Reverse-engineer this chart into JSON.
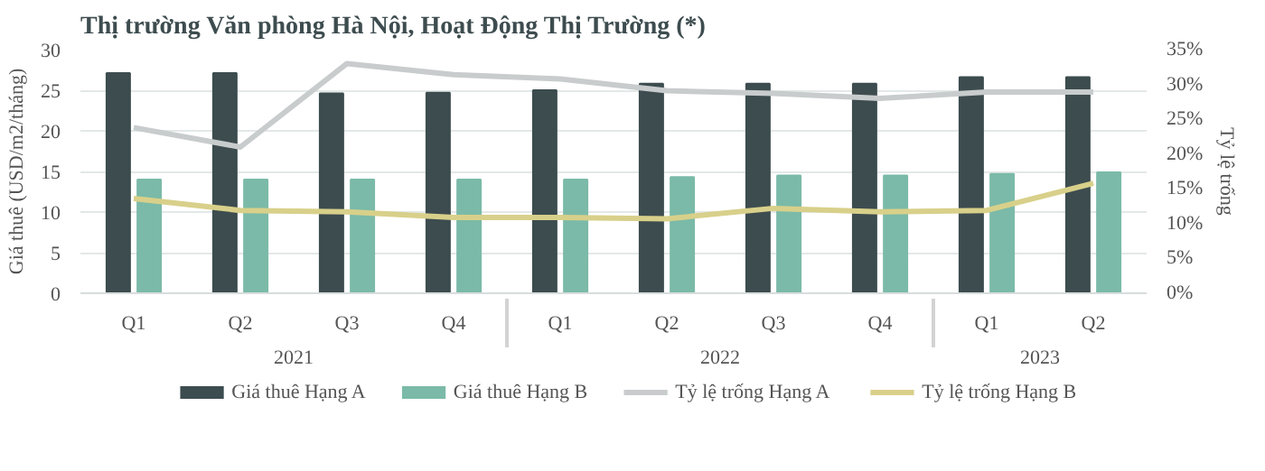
{
  "chart_data": {
    "type": "bar",
    "title": "Thị trường Văn phòng Hà Nội, Hoạt Động Thị Trường (*)",
    "ylabel": "Giá thuê (USD/m2/tháng)",
    "y2label": "Tỷ lệ trống",
    "categories": [
      "Q1",
      "Q2",
      "Q3",
      "Q4",
      "Q1",
      "Q2",
      "Q3",
      "Q4",
      "Q1",
      "Q2"
    ],
    "annotations": [
      "2021",
      "2022",
      "2023"
    ],
    "series": [
      {
        "name": "Giá thuê Hạng A",
        "color": "#3d4c4f",
        "values": [
          27.1,
          27.1,
          24.6,
          24.7,
          25.0,
          25.8,
          25.8,
          25.8,
          26.6,
          26.6
        ]
      },
      {
        "name": "Giá thuê Hạng B",
        "color": "#7bbaa8",
        "values": [
          14.0,
          14.0,
          14.0,
          14.0,
          14.0,
          14.3,
          14.5,
          14.5,
          14.7,
          14.9
        ]
      },
      {
        "name": "Tỷ lệ trống Hạng A",
        "color": "#c8cccd",
        "type": "line",
        "axis": "y2",
        "values": [
          23.8,
          21.0,
          33.0,
          31.4,
          30.8,
          29.1,
          28.7,
          28.0,
          28.9,
          28.9
        ]
      },
      {
        "name": "Tỷ lệ trống Hạng B",
        "color": "#d8d08a",
        "type": "line",
        "axis": "y2",
        "values": [
          13.6,
          11.9,
          11.7,
          10.9,
          10.9,
          10.7,
          12.2,
          11.7,
          11.9,
          15.8
        ]
      }
    ],
    "ylim": [
      0,
      30
    ],
    "yticks": [
      0,
      5,
      10,
      15,
      20,
      25,
      30
    ],
    "y2lim": [
      0,
      35
    ],
    "y2ticks": [
      {
        "value": 0,
        "label": "0%"
      },
      {
        "value": 5,
        "label": "5%"
      },
      {
        "value": 10,
        "label": "10%"
      },
      {
        "value": 15,
        "label": "15%"
      },
      {
        "value": 20,
        "label": "20%"
      },
      {
        "value": 25,
        "label": "25%"
      },
      {
        "value": 30,
        "label": "30%"
      },
      {
        "value": 35,
        "label": "35%"
      }
    ],
    "grid": "y",
    "legend": "bottom"
  }
}
